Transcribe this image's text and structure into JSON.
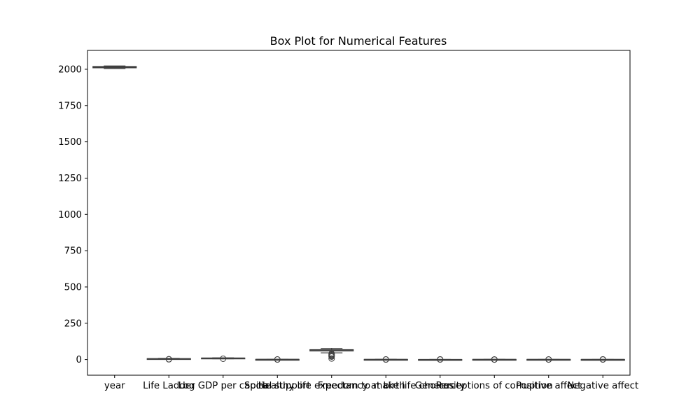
{
  "chart_data": {
    "type": "box",
    "title": "Box Plot for Numerical Features",
    "xlabel": "",
    "ylabel": "",
    "ylim": [
      -108,
      2130
    ],
    "yticks": [
      0,
      250,
      500,
      750,
      1000,
      1250,
      1500,
      1750,
      2000
    ],
    "grid": false,
    "colors": {
      "box_stroke": "#3f3f3f",
      "box_fill": "#ffffff",
      "axis": "#000000"
    },
    "boxes": [
      {
        "category": "year",
        "whisker_low": 2005,
        "q1": 2010,
        "median": 2015,
        "q3": 2019,
        "whisker_high": 2023,
        "outliers": []
      },
      {
        "category": "Life Ladder",
        "whisker_low": 2.9,
        "q1": 4.6,
        "median": 5.4,
        "q3": 6.2,
        "whisker_high": 8.0,
        "outliers": [
          2.2,
          1.5
        ]
      },
      {
        "category": "Log GDP per capita",
        "whisker_low": 5.5,
        "q1": 8.4,
        "median": 9.5,
        "q3": 10.4,
        "whisker_high": 11.7,
        "outliers": [
          5.5
        ]
      },
      {
        "category": "Social support",
        "whisker_low": 0.5,
        "q1": 0.75,
        "median": 0.83,
        "q3": 0.9,
        "whisker_high": 0.99,
        "outliers": [
          0.3,
          0.45
        ]
      },
      {
        "category": "Healthy life expectancy at birth",
        "whisker_low": 46,
        "q1": 59,
        "median": 65,
        "q3": 68,
        "whisker_high": 77,
        "outliers": [
          40,
          35,
          30,
          25,
          20,
          7
        ]
      },
      {
        "category": "Freedom to make life choices",
        "whisker_low": 0.4,
        "q1": 0.66,
        "median": 0.77,
        "q3": 0.86,
        "whisker_high": 0.99,
        "outliers": [
          0.26,
          0.3
        ]
      },
      {
        "category": "Generosity",
        "whisker_low": -0.3,
        "q1": -0.11,
        "median": -0.02,
        "q3": 0.09,
        "whisker_high": 0.4,
        "outliers": [
          0.5,
          0.6,
          0.7
        ]
      },
      {
        "category": "Perceptions of corruption",
        "whisker_low": 0.3,
        "q1": 0.69,
        "median": 0.8,
        "q3": 0.87,
        "whisker_high": 0.98,
        "outliers": [
          0.05,
          0.1,
          0.2
        ]
      },
      {
        "category": "Positive affect",
        "whisker_low": 0.3,
        "q1": 0.57,
        "median": 0.66,
        "q3": 0.74,
        "whisker_high": 0.88,
        "outliers": [
          0.18,
          0.25
        ]
      },
      {
        "category": "Negative affect",
        "whisker_low": 0.08,
        "q1": 0.21,
        "median": 0.26,
        "q3": 0.33,
        "whisker_high": 0.5,
        "outliers": [
          0.55,
          0.6,
          0.7
        ]
      }
    ]
  }
}
